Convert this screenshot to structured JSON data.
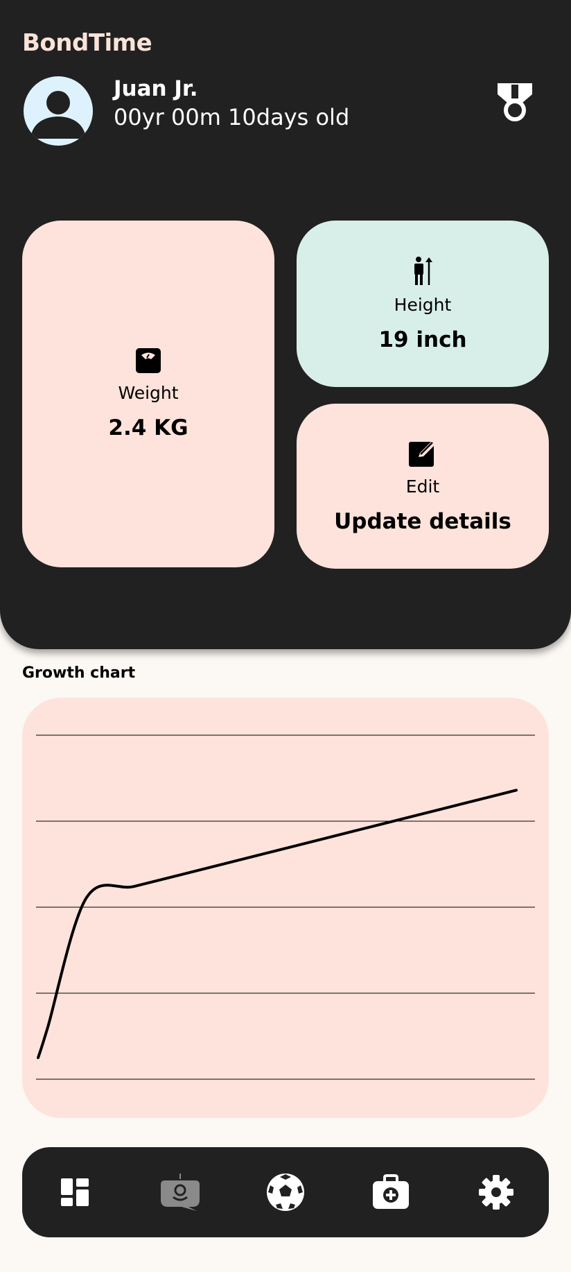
{
  "app": {
    "title": "BondTime"
  },
  "profile": {
    "name": "Juan Jr.",
    "age": "00yr 00m 10days old",
    "avatar_icon": "person-avatar-icon",
    "badge_icon": "medal-icon"
  },
  "cards": {
    "weight": {
      "icon": "weight-scale-icon",
      "label": "Weight",
      "value": "2.4 KG"
    },
    "height": {
      "icon": "height-measure-icon",
      "label": "Height",
      "value": "19 inch"
    },
    "edit": {
      "icon": "edit-icon",
      "label": "Edit",
      "value": "Update details"
    }
  },
  "growth": {
    "title": "Growth chart"
  },
  "chart_data": {
    "type": "line",
    "title": "Growth chart",
    "xlabel": "",
    "ylabel": "",
    "grid": true,
    "gridlines": 5,
    "x": [
      0,
      0.2,
      1,
      2,
      3,
      4,
      5,
      6,
      7,
      8,
      9,
      10
    ],
    "y": [
      0.5,
      1.2,
      4.2,
      4.48,
      4.76,
      5.04,
      5.32,
      5.6,
      5.88,
      6.16,
      6.44,
      6.72
    ],
    "xlim": [
      0,
      10
    ],
    "ylim": [
      0,
      8
    ]
  },
  "nav": {
    "items": [
      {
        "name": "dashboard",
        "icon": "dashboard-icon"
      },
      {
        "name": "assistant",
        "icon": "chatbot-icon"
      },
      {
        "name": "activities",
        "icon": "soccer-ball-icon"
      },
      {
        "name": "health",
        "icon": "medical-kit-icon"
      },
      {
        "name": "settings",
        "icon": "gear-icon"
      }
    ]
  },
  "colors": {
    "dark": "#212121",
    "peach": "#fde3db",
    "mint": "#d8efe9",
    "avatar_bg": "#ddf2fd",
    "title_accent": "#fbe3d9"
  }
}
